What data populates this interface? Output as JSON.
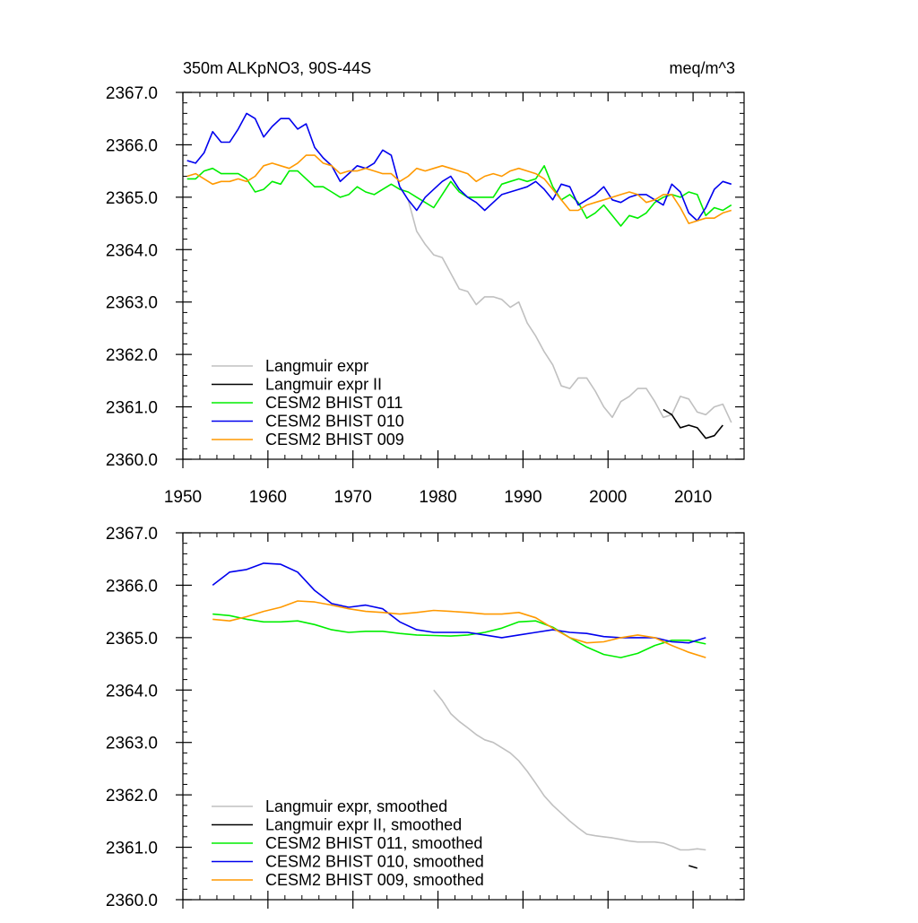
{
  "panels": [
    {
      "title": "350m ALKpNO3, 90S-44S",
      "units": "meq/m^3"
    },
    {
      "title": "",
      "units": ""
    }
  ],
  "chart_data": [
    {
      "type": "line",
      "title": "350m ALKpNO3, 90S-44S",
      "units_label": "meq/m^3",
      "xlim": [
        1950,
        2016
      ],
      "ylim": [
        2360.0,
        2367.0
      ],
      "x_ticks": [
        1950,
        1960,
        1970,
        1980,
        1990,
        2000,
        2010
      ],
      "y_ticks": [
        "2360.0",
        "2361.0",
        "2362.0",
        "2363.0",
        "2364.0",
        "2365.0",
        "2366.0",
        "2367.0"
      ],
      "grid": false,
      "legend_position": "bottom-left",
      "series": [
        {
          "name": "Langmuir expr",
          "color": "#c0c0c0",
          "x": [
            1976.5,
            1977.5,
            1978.5,
            1979.5,
            1980.5,
            1981.5,
            1982.5,
            1983.5,
            1984.5,
            1985.5,
            1986.5,
            1987.5,
            1988.5,
            1989.5,
            1990.5,
            1991.5,
            1992.5,
            1993.5,
            1994.5,
            1995.5,
            1996.5,
            1997.5,
            1998.5,
            1999.5,
            2000.5,
            2001.5,
            2002.5,
            2003.5,
            2004.5,
            2005.5,
            2006.5,
            2007.5,
            2008.5,
            2009.5,
            2010.5,
            2011.5,
            2012.5,
            2013.5,
            2014.5
          ],
          "y": [
            2364.95,
            2364.35,
            2364.1,
            2363.9,
            2363.85,
            2363.55,
            2363.25,
            2363.2,
            2362.95,
            2363.1,
            2363.1,
            2363.05,
            2362.9,
            2363.0,
            2362.6,
            2362.35,
            2362.05,
            2361.8,
            2361.4,
            2361.35,
            2361.55,
            2361.55,
            2361.3,
            2361.0,
            2360.8,
            2361.1,
            2361.2,
            2361.35,
            2361.35,
            2361.1,
            2360.8,
            2360.85,
            2361.2,
            2361.15,
            2360.9,
            2360.85,
            2361.0,
            2361.05,
            2360.7
          ]
        },
        {
          "name": "Langmuir expr II",
          "color": "#000000",
          "x": [
            2006.5,
            2007.5,
            2008.5,
            2009.5,
            2010.5,
            2011.5,
            2012.5,
            2013.5
          ],
          "y": [
            2360.95,
            2360.85,
            2360.6,
            2360.65,
            2360.6,
            2360.4,
            2360.45,
            2360.65
          ]
        },
        {
          "name": "CESM2 BHIST 011",
          "color": "#00ee00",
          "x": [
            1950.5,
            1951.5,
            1952.5,
            1953.5,
            1954.5,
            1955.5,
            1956.5,
            1957.5,
            1958.5,
            1959.5,
            1960.5,
            1961.5,
            1962.5,
            1963.5,
            1964.5,
            1965.5,
            1966.5,
            1967.5,
            1968.5,
            1969.5,
            1970.5,
            1971.5,
            1972.5,
            1973.5,
            1974.5,
            1975.5,
            1976.5,
            1977.5,
            1978.5,
            1979.5,
            1980.5,
            1981.5,
            1982.5,
            1983.5,
            1984.5,
            1985.5,
            1986.5,
            1987.5,
            1988.5,
            1989.5,
            1990.5,
            1991.5,
            1992.5,
            1993.5,
            1994.5,
            1995.5,
            1996.5,
            1997.5,
            1998.5,
            1999.5,
            2000.5,
            2001.5,
            2002.5,
            2003.5,
            2004.5,
            2005.5,
            2006.5,
            2007.5,
            2008.5,
            2009.5,
            2010.5,
            2011.5,
            2012.5,
            2013.5,
            2014.5
          ],
          "y": [
            2365.35,
            2365.35,
            2365.5,
            2365.55,
            2365.45,
            2365.45,
            2365.45,
            2365.35,
            2365.1,
            2365.15,
            2365.3,
            2365.25,
            2365.5,
            2365.5,
            2365.35,
            2365.2,
            2365.2,
            2365.1,
            2365.0,
            2365.05,
            2365.2,
            2365.1,
            2365.05,
            2365.15,
            2365.25,
            2365.15,
            2365.1,
            2365.0,
            2364.9,
            2364.8,
            2365.05,
            2365.3,
            2365.1,
            2365.0,
            2365.0,
            2365.0,
            2365.0,
            2365.25,
            2365.3,
            2365.35,
            2365.3,
            2365.35,
            2365.6,
            2365.2,
            2364.95,
            2365.05,
            2364.9,
            2364.6,
            2364.7,
            2364.85,
            2364.65,
            2364.45,
            2364.65,
            2364.6,
            2364.7,
            2364.9,
            2365.0,
            2365.05,
            2365.0,
            2365.1,
            2365.05,
            2364.65,
            2364.8,
            2364.75,
            2364.85
          ]
        },
        {
          "name": "CESM2 BHIST 010",
          "color": "#0000ee",
          "x": [
            1950.5,
            1951.5,
            1952.5,
            1953.5,
            1954.5,
            1955.5,
            1956.5,
            1957.5,
            1958.5,
            1959.5,
            1960.5,
            1961.5,
            1962.5,
            1963.5,
            1964.5,
            1965.5,
            1966.5,
            1967.5,
            1968.5,
            1969.5,
            1970.5,
            1971.5,
            1972.5,
            1973.5,
            1974.5,
            1975.5,
            1976.5,
            1977.5,
            1978.5,
            1979.5,
            1980.5,
            1981.5,
            1982.5,
            1983.5,
            1984.5,
            1985.5,
            1986.5,
            1987.5,
            1988.5,
            1989.5,
            1990.5,
            1991.5,
            1992.5,
            1993.5,
            1994.5,
            1995.5,
            1996.5,
            1997.5,
            1998.5,
            1999.5,
            2000.5,
            2001.5,
            2002.5,
            2003.5,
            2004.5,
            2005.5,
            2006.5,
            2007.5,
            2008.5,
            2009.5,
            2010.5,
            2011.5,
            2012.5,
            2013.5,
            2014.5
          ],
          "y": [
            2365.7,
            2365.65,
            2365.85,
            2366.25,
            2366.05,
            2366.05,
            2366.3,
            2366.6,
            2366.5,
            2366.15,
            2366.35,
            2366.5,
            2366.5,
            2366.3,
            2366.4,
            2365.95,
            2365.75,
            2365.6,
            2365.3,
            2365.45,
            2365.6,
            2365.55,
            2365.65,
            2365.9,
            2365.8,
            2365.2,
            2364.95,
            2364.75,
            2365.0,
            2365.15,
            2365.3,
            2365.4,
            2365.15,
            2365.0,
            2364.9,
            2364.75,
            2364.9,
            2365.05,
            2365.1,
            2365.15,
            2365.2,
            2365.3,
            2365.15,
            2364.95,
            2365.25,
            2365.2,
            2364.85,
            2364.95,
            2365.05,
            2365.2,
            2364.95,
            2364.9,
            2365.0,
            2365.05,
            2365.05,
            2364.95,
            2364.85,
            2365.25,
            2365.1,
            2364.7,
            2364.55,
            2364.8,
            2365.15,
            2365.3,
            2365.25
          ]
        },
        {
          "name": "CESM2 BHIST 009",
          "color": "#ff9900",
          "x": [
            1950.5,
            1951.5,
            1952.5,
            1953.5,
            1954.5,
            1955.5,
            1956.5,
            1957.5,
            1958.5,
            1959.5,
            1960.5,
            1961.5,
            1962.5,
            1963.5,
            1964.5,
            1965.5,
            1966.5,
            1967.5,
            1968.5,
            1969.5,
            1970.5,
            1971.5,
            1972.5,
            1973.5,
            1974.5,
            1975.5,
            1976.5,
            1977.5,
            1978.5,
            1979.5,
            1980.5,
            1981.5,
            1982.5,
            1983.5,
            1984.5,
            1985.5,
            1986.5,
            1987.5,
            1988.5,
            1989.5,
            1990.5,
            1991.5,
            1992.5,
            1993.5,
            1994.5,
            1995.5,
            1996.5,
            1997.5,
            1998.5,
            1999.5,
            2000.5,
            2001.5,
            2002.5,
            2003.5,
            2004.5,
            2005.5,
            2006.5,
            2007.5,
            2008.5,
            2009.5,
            2010.5,
            2011.5,
            2012.5,
            2013.5,
            2014.5
          ],
          "y": [
            2365.4,
            2365.45,
            2365.35,
            2365.25,
            2365.3,
            2365.3,
            2365.35,
            2365.3,
            2365.4,
            2365.6,
            2365.65,
            2365.6,
            2365.55,
            2365.65,
            2365.8,
            2365.8,
            2365.65,
            2365.6,
            2365.45,
            2365.5,
            2365.5,
            2365.55,
            2365.5,
            2365.45,
            2365.45,
            2365.3,
            2365.4,
            2365.55,
            2365.5,
            2365.55,
            2365.6,
            2365.55,
            2365.5,
            2365.45,
            2365.3,
            2365.4,
            2365.45,
            2365.4,
            2365.5,
            2365.55,
            2365.5,
            2365.45,
            2365.35,
            2365.15,
            2364.95,
            2364.75,
            2364.75,
            2364.85,
            2364.9,
            2364.95,
            2365.0,
            2365.05,
            2365.1,
            2365.05,
            2364.9,
            2364.95,
            2365.05,
            2365.05,
            2364.8,
            2364.5,
            2364.55,
            2364.6,
            2364.6,
            2364.7,
            2364.75
          ]
        }
      ]
    },
    {
      "type": "line",
      "title": "",
      "xlim": [
        1950,
        2016
      ],
      "ylim": [
        2360.0,
        2367.0
      ],
      "x_ticks": [
        1950,
        1960,
        1970,
        1980,
        1990,
        2000,
        2010
      ],
      "y_ticks": [
        "2360.0",
        "2361.0",
        "2362.0",
        "2363.0",
        "2364.0",
        "2365.0",
        "2366.0",
        "2367.0"
      ],
      "grid": false,
      "legend_position": "bottom-left",
      "series": [
        {
          "name": "Langmuir expr, smoothed",
          "color": "#c0c0c0",
          "x": [
            1979.5,
            1980.5,
            1981.5,
            1982.5,
            1983.5,
            1984.5,
            1985.5,
            1986.5,
            1987.5,
            1988.5,
            1989.5,
            1990.5,
            1991.5,
            1992.5,
            1993.5,
            1994.5,
            1995.5,
            1996.5,
            1997.5,
            1998.5,
            1999.5,
            2000.5,
            2001.5,
            2002.5,
            2003.5,
            2004.5,
            2005.5,
            2006.5,
            2007.5,
            2008.5,
            2009.5,
            2010.5,
            2011.5
          ],
          "y": [
            2364.0,
            2363.8,
            2363.55,
            2363.4,
            2363.28,
            2363.15,
            2363.05,
            2363.0,
            2362.9,
            2362.8,
            2362.65,
            2362.45,
            2362.22,
            2361.98,
            2361.8,
            2361.65,
            2361.5,
            2361.37,
            2361.25,
            2361.22,
            2361.2,
            2361.18,
            2361.15,
            2361.12,
            2361.1,
            2361.1,
            2361.1,
            2361.08,
            2361.02,
            2360.95,
            2360.95,
            2360.97,
            2360.95
          ]
        },
        {
          "name": "Langmuir expr II, smoothed",
          "color": "#000000",
          "x": [
            2009.5,
            2010.5
          ],
          "y": [
            2360.65,
            2360.6
          ]
        },
        {
          "name": "CESM2 BHIST 011, smoothed",
          "color": "#00ee00",
          "x": [
            1953.5,
            1955.5,
            1957.5,
            1959.5,
            1961.5,
            1963.5,
            1965.5,
            1967.5,
            1969.5,
            1971.5,
            1973.5,
            1975.5,
            1977.5,
            1979.5,
            1981.5,
            1983.5,
            1985.5,
            1987.5,
            1989.5,
            1991.5,
            1993.5,
            1995.5,
            1997.5,
            1999.5,
            2001.5,
            2003.5,
            2005.5,
            2007.5,
            2009.5,
            2011.5
          ],
          "y": [
            2365.45,
            2365.42,
            2365.35,
            2365.3,
            2365.3,
            2365.32,
            2365.25,
            2365.15,
            2365.1,
            2365.12,
            2365.12,
            2365.08,
            2365.05,
            2365.04,
            2365.03,
            2365.05,
            2365.1,
            2365.18,
            2365.3,
            2365.32,
            2365.2,
            2365.0,
            2364.82,
            2364.68,
            2364.62,
            2364.7,
            2364.85,
            2364.95,
            2364.95,
            2364.88
          ]
        },
        {
          "name": "CESM2 BHIST 010, smoothed",
          "color": "#0000ee",
          "x": [
            1953.5,
            1955.5,
            1957.5,
            1959.5,
            1961.5,
            1963.5,
            1965.5,
            1967.5,
            1969.5,
            1971.5,
            1973.5,
            1975.5,
            1977.5,
            1979.5,
            1981.5,
            1983.5,
            1985.5,
            1987.5,
            1989.5,
            1991.5,
            1993.5,
            1995.5,
            1997.5,
            1999.5,
            2001.5,
            2003.5,
            2005.5,
            2007.5,
            2009.5,
            2011.5
          ],
          "y": [
            2366.0,
            2366.25,
            2366.3,
            2366.42,
            2366.4,
            2366.25,
            2365.9,
            2365.65,
            2365.58,
            2365.62,
            2365.55,
            2365.3,
            2365.15,
            2365.1,
            2365.1,
            2365.1,
            2365.05,
            2365.0,
            2365.05,
            2365.1,
            2365.15,
            2365.1,
            2365.08,
            2365.02,
            2365.0,
            2365.0,
            2365.0,
            2364.92,
            2364.9,
            2365.0
          ]
        },
        {
          "name": "CESM2 BHIST 009, smoothed",
          "color": "#ff9900",
          "x": [
            1953.5,
            1955.5,
            1957.5,
            1959.5,
            1961.5,
            1963.5,
            1965.5,
            1967.5,
            1969.5,
            1971.5,
            1973.5,
            1975.5,
            1977.5,
            1979.5,
            1981.5,
            1983.5,
            1985.5,
            1987.5,
            1989.5,
            1991.5,
            1993.5,
            1995.5,
            1997.5,
            1999.5,
            2001.5,
            2003.5,
            2005.5,
            2007.5,
            2009.5,
            2011.5
          ],
          "y": [
            2365.35,
            2365.32,
            2365.4,
            2365.5,
            2365.58,
            2365.7,
            2365.68,
            2365.62,
            2365.55,
            2365.5,
            2365.48,
            2365.45,
            2365.48,
            2365.52,
            2365.5,
            2365.48,
            2365.45,
            2365.45,
            2365.48,
            2365.38,
            2365.18,
            2365.0,
            2364.9,
            2364.92,
            2365.0,
            2365.05,
            2365.0,
            2364.85,
            2364.72,
            2364.62
          ]
        }
      ]
    }
  ]
}
